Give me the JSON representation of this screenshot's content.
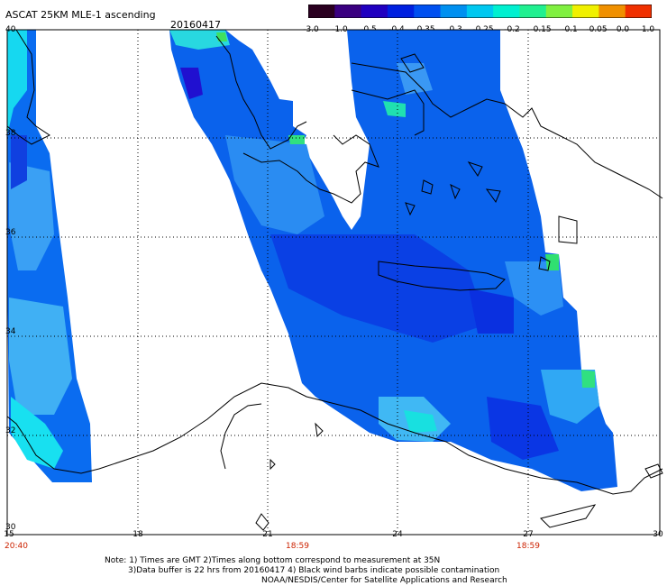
{
  "header": {
    "title": "ASCAT 25KM MLE-1 ascending",
    "date": "20160417"
  },
  "colorbar": {
    "labels": [
      "-3.0",
      "-1.0",
      "-0.5",
      "-0.4",
      "-0.35",
      "-0.3",
      "-0.25",
      "-0.2",
      "-0.15",
      "-0.1",
      "-0.05",
      "0.0",
      "1.0"
    ],
    "colors": [
      "#2a0020",
      "#3a0080",
      "#2000c0",
      "#0020e0",
      "#0050f0",
      "#0090f0",
      "#00c8f0",
      "#00f0d0",
      "#20f090",
      "#80f040",
      "#f0f000",
      "#f09000",
      "#f03000"
    ]
  },
  "axes": {
    "latitudes": [
      "40",
      "38",
      "36",
      "34",
      "32",
      "30"
    ],
    "longitudes": [
      "15",
      "18",
      "21",
      "24",
      "27",
      "30"
    ]
  },
  "times": [
    "20:40",
    "18:59",
    "18:59"
  ],
  "notes": {
    "line1": "Note: 1) Times are GMT 2)Times along bottom correspond to measurement at 35N",
    "line2": "3)Data buffer is 22 hrs from 20160417 4) Black wind barbs indicate possible contamination",
    "line3": "NOAA/NESDIS/Center for Satellite Applications and Research"
  }
}
